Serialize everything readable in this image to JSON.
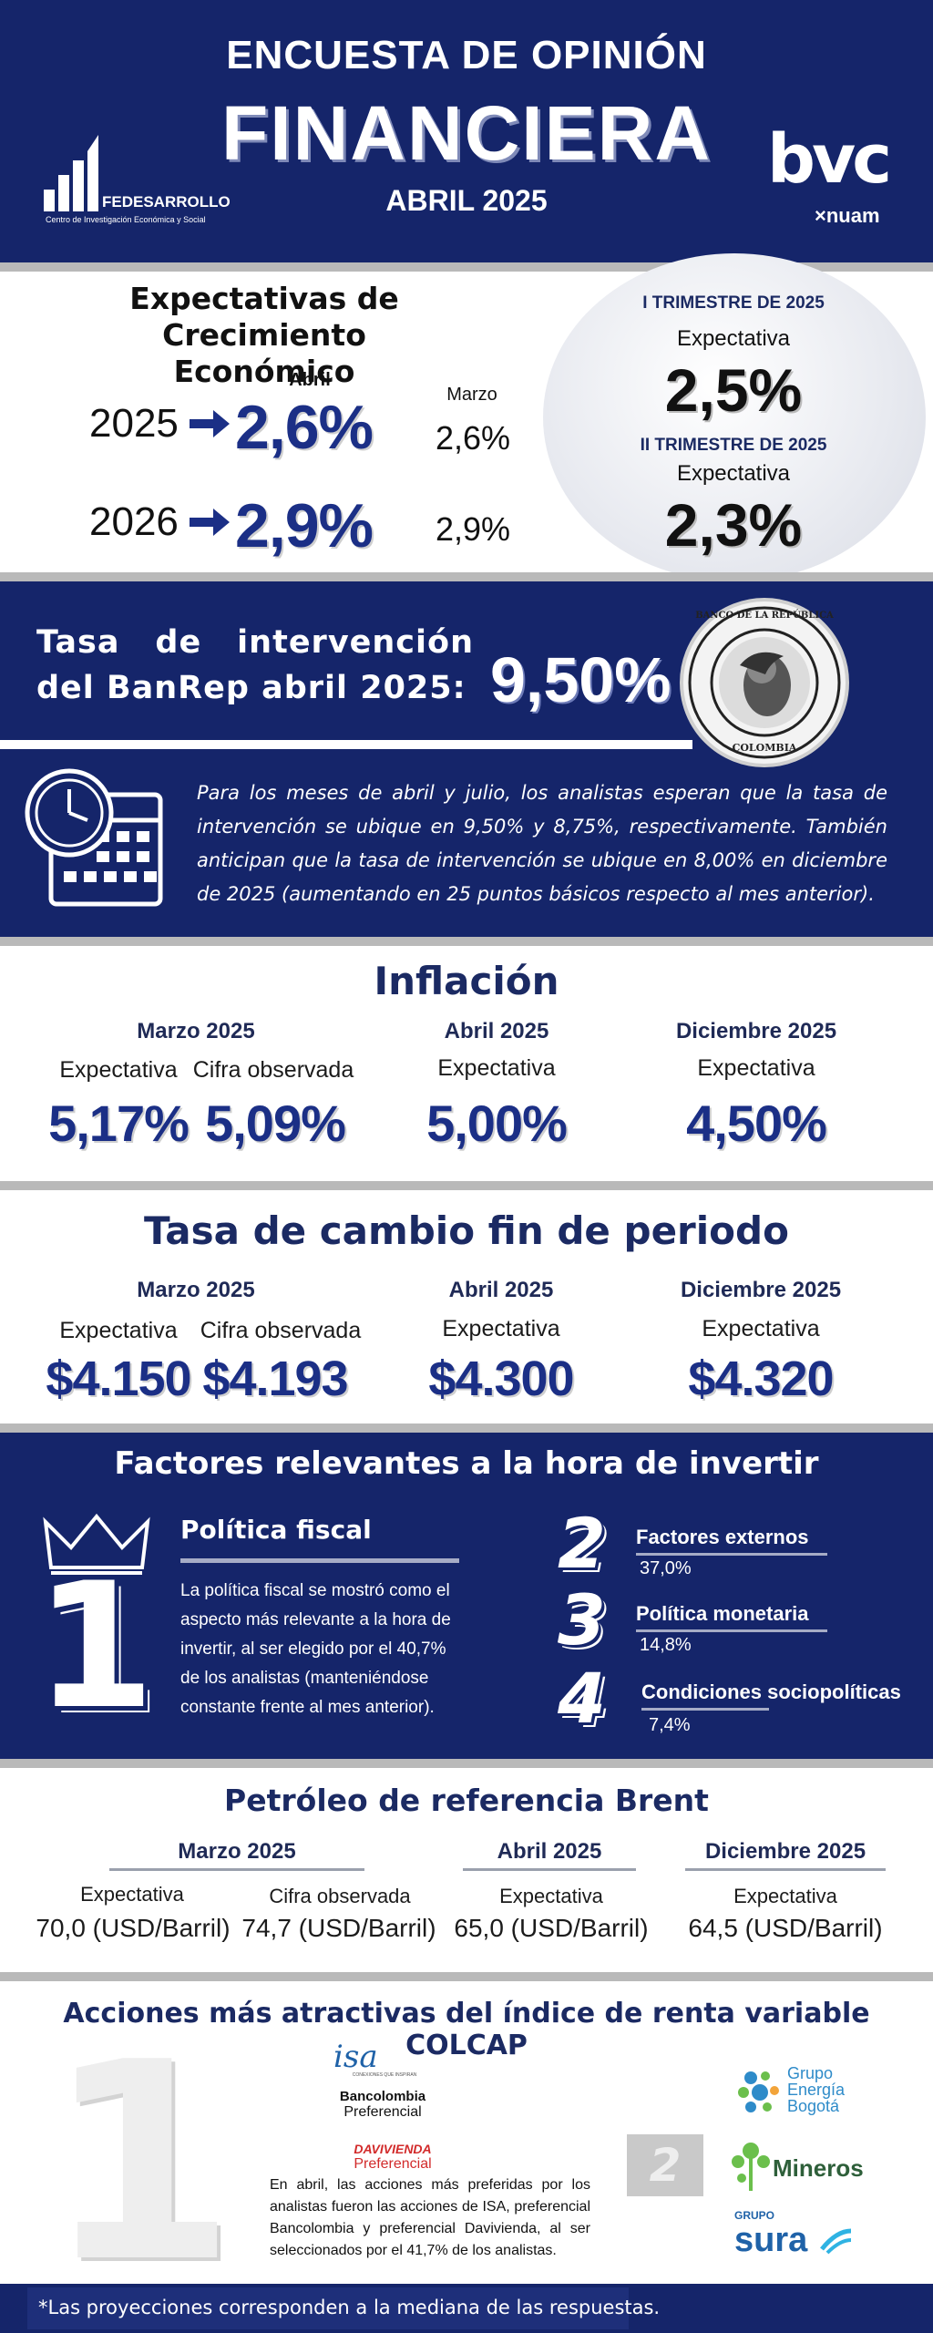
{
  "header": {
    "title_line1": "ENCUESTA DE OPINIÓN",
    "title_line2": "FINANCIERA",
    "date": "ABRIL 2025",
    "logo_left_name": "FEDESARROLLO",
    "logo_left_sub": "Centro de Investigación Económica y Social",
    "logo_right_name": "bvc",
    "logo_right_sub": "×nuam"
  },
  "growth": {
    "title": "Expectativas de Crecimiento Económico",
    "col_current": "Abril",
    "col_previous": "Marzo",
    "rows": [
      {
        "year": "2025",
        "current": "2,6%",
        "previous": "2,6%"
      },
      {
        "year": "2026",
        "current": "2,9%",
        "previous": "2,9%"
      }
    ],
    "quarters": [
      {
        "label": "I TRIMESTRE DE 2025",
        "sub": "Expectativa",
        "value": "2,5%"
      },
      {
        "label": "II TRIMESTRE DE 2025",
        "sub": "Expectativa",
        "value": "2,3%"
      }
    ]
  },
  "rate": {
    "title": "Tasa de intervención del BanRep abril 2025:",
    "value": "9,50%",
    "seal_top": "BANCO DE LA REPÚBLICA",
    "seal_bottom": "COLOMBIA",
    "description": "Para los meses de abril y julio, los analistas esperan que la tasa de intervención se ubique en 9,50% y 8,75%, respectivamente. También anticipan que la tasa de intervención se ubique en 8,00% en diciembre de 2025 (aumentando en 25 puntos básicos respecto al mes anterior)."
  },
  "inflation": {
    "title": "Inflación",
    "groups": [
      {
        "period": "Marzo 2025",
        "items": [
          {
            "label": "Expectativa",
            "value": "5,17%"
          },
          {
            "label": "Cifra observada",
            "value": "5,09%"
          }
        ]
      },
      {
        "period": "Abril 2025",
        "items": [
          {
            "label": "Expectativa",
            "value": "5,00%"
          }
        ]
      },
      {
        "period": "Diciembre 2025",
        "items": [
          {
            "label": "Expectativa",
            "value": "4,50%"
          }
        ]
      }
    ]
  },
  "fx": {
    "title": "Tasa de cambio fin de periodo",
    "groups": [
      {
        "period": "Marzo 2025",
        "items": [
          {
            "label": "Expectativa",
            "value": "$4.150"
          },
          {
            "label": "Cifra observada",
            "value": "$4.193"
          }
        ]
      },
      {
        "period": "Abril 2025",
        "items": [
          {
            "label": "Expectativa",
            "value": "$4.300"
          }
        ]
      },
      {
        "period": "Diciembre 2025",
        "items": [
          {
            "label": "Expectativa",
            "value": "$4.320"
          }
        ]
      }
    ]
  },
  "factors": {
    "title": "Factores relevantes a la hora de invertir",
    "top": {
      "rank": "1",
      "name": "Política fiscal",
      "description": "La política fiscal se mostró como el aspecto más relevante a la hora de invertir, al ser elegido por el 40,7% de los analistas (manteniéndose constante frente al mes anterior)."
    },
    "others": [
      {
        "rank": "2",
        "name": "Factores externos",
        "value": "37,0%"
      },
      {
        "rank": "3",
        "name": "Política monetaria",
        "value": "14,8%"
      },
      {
        "rank": "4",
        "name": "Condiciones sociopolíticas",
        "value": "7,4%"
      }
    ]
  },
  "oil": {
    "title": "Petróleo de referencia Brent",
    "groups": [
      {
        "period": "Marzo 2025",
        "items": [
          {
            "label": "Expectativa",
            "value": "70,0 (USD/Barril)"
          },
          {
            "label": "Cifra observada",
            "value": "74,7 (USD/Barril)"
          }
        ]
      },
      {
        "period": "Abril 2025",
        "items": [
          {
            "label": "Expectativa",
            "value": "65,0 (USD/Barril)"
          }
        ]
      },
      {
        "period": "Diciembre 2025",
        "items": [
          {
            "label": "Expectativa",
            "value": "64,5 (USD/Barril)"
          }
        ]
      }
    ]
  },
  "stocks": {
    "title": "Acciones más atractivas del índice de renta variable COLCAP",
    "first_rank": "1",
    "second_rank": "2",
    "first_logos": [
      {
        "name": "isa",
        "sub": "CONEXIONES QUE INSPIRAN"
      },
      {
        "name": "Bancolombia",
        "sub": "Preferencial"
      },
      {
        "name": "DAVIVIENDA",
        "sub": "Preferencial"
      }
    ],
    "second_logos": [
      {
        "name": "Grupo Energía Bogotá"
      },
      {
        "name": "Mineros"
      },
      {
        "name": "GRUPO",
        "sub": "sura"
      }
    ],
    "description": "En abril, las acciones más preferidas por los analistas fueron las acciones de ISA, preferencial Bancolombia y preferencial Davivienda, al ser seleccionados por el 41,7% de los analistas."
  },
  "footer": {
    "note": "*Las proyecciones corresponden a la mediana de las respuestas."
  }
}
